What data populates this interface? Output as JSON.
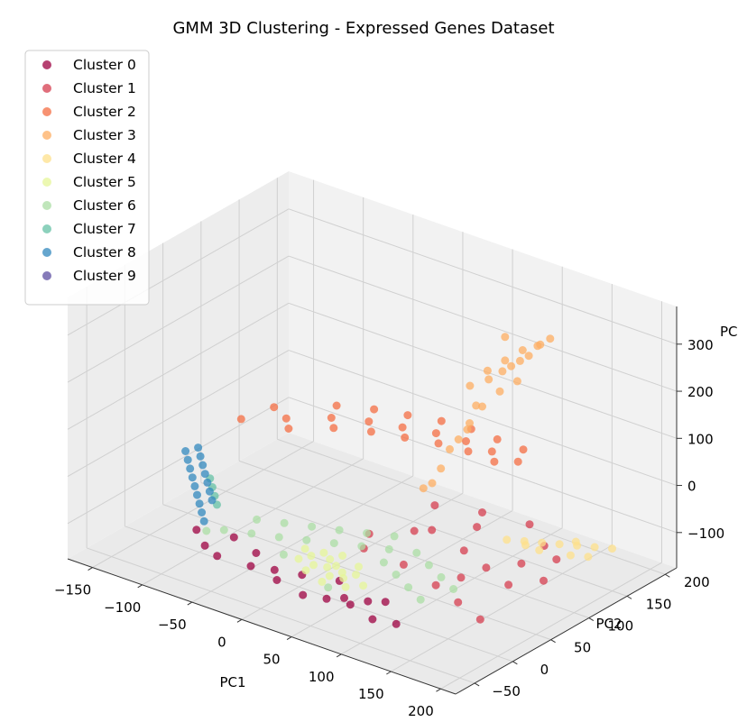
{
  "chart_data": {
    "type": "scatter",
    "projection": "3d",
    "title": "GMM 3D Clustering - Expressed Genes Dataset",
    "xlabel": "PC1",
    "ylabel": "PC2",
    "zlabel": "PC",
    "x_ticks": [
      "−150",
      "−100",
      "−50",
      "0",
      "50",
      "100",
      "150",
      "200"
    ],
    "y_ticks": [
      "−50",
      "0",
      "50",
      "100",
      "150",
      "200"
    ],
    "z_ticks": [
      "−100",
      "0",
      "100",
      "200",
      "300"
    ],
    "x_range": [
      -175,
      215
    ],
    "y_range": [
      -75,
      215
    ],
    "z_range": [
      -175,
      380
    ],
    "grid": true,
    "legend_position": "upper-left",
    "series": [
      {
        "name": "Cluster 0",
        "color": "#9e0142",
        "points": [
          [
            -60,
            -45,
            -90
          ],
          [
            -40,
            -55,
            -88
          ],
          [
            -10,
            -50,
            -92
          ],
          [
            20,
            -55,
            -95
          ],
          [
            50,
            -60,
            -100
          ],
          [
            80,
            -45,
            -98
          ],
          [
            100,
            -40,
            -95
          ],
          [
            120,
            -60,
            -100
          ],
          [
            140,
            -55,
            -100
          ],
          [
            -80,
            -30,
            -85
          ],
          [
            -20,
            -30,
            -90
          ],
          [
            30,
            -35,
            -95
          ],
          [
            60,
            -25,
            -95
          ],
          [
            90,
            -50,
            -100
          ],
          [
            10,
            -45,
            -90
          ],
          [
            -50,
            -20,
            -88
          ],
          [
            110,
            -30,
            -98
          ],
          [
            70,
            -55,
            -98
          ]
        ]
      },
      {
        "name": "Cluster 1",
        "color": "#d53e4f",
        "points": [
          [
            60,
            100,
            -50
          ],
          [
            100,
            110,
            -45
          ],
          [
            140,
            120,
            -50
          ],
          [
            170,
            100,
            -55
          ],
          [
            190,
            90,
            -60
          ],
          [
            80,
            70,
            -60
          ],
          [
            120,
            60,
            -65
          ],
          [
            150,
            50,
            -70
          ],
          [
            180,
            40,
            -75
          ],
          [
            200,
            60,
            -70
          ],
          [
            40,
            40,
            -70
          ],
          [
            90,
            20,
            -80
          ],
          [
            130,
            10,
            -85
          ],
          [
            160,
            0,
            -90
          ],
          [
            190,
            -10,
            -95
          ],
          [
            110,
            90,
            -50
          ],
          [
            70,
            60,
            -60
          ],
          [
            170,
            70,
            -65
          ],
          [
            50,
            20,
            -75
          ],
          [
            140,
            30,
            -80
          ]
        ]
      },
      {
        "name": "Cluster 2",
        "color": "#f46d43",
        "points": [
          [
            -150,
            120,
            -40
          ],
          [
            -120,
            140,
            -35
          ],
          [
            -90,
            160,
            -30
          ],
          [
            -60,
            170,
            -25
          ],
          [
            -30,
            175,
            -20
          ],
          [
            0,
            180,
            -15
          ],
          [
            30,
            180,
            -10
          ],
          [
            60,
            175,
            -5
          ],
          [
            90,
            170,
            0
          ],
          [
            -140,
            150,
            -35
          ],
          [
            -100,
            180,
            -30
          ],
          [
            -70,
            190,
            -25
          ],
          [
            -40,
            195,
            -20
          ],
          [
            -10,
            200,
            -15
          ],
          [
            20,
            200,
            -10
          ],
          [
            50,
            195,
            -5
          ],
          [
            80,
            190,
            0
          ],
          [
            -110,
            130,
            -40
          ],
          [
            -80,
            150,
            -35
          ],
          [
            -50,
            160,
            -30
          ],
          [
            -20,
            165,
            -25
          ],
          [
            10,
            170,
            -20
          ],
          [
            40,
            170,
            -15
          ],
          [
            70,
            165,
            -10
          ]
        ]
      },
      {
        "name": "Cluster 3",
        "color": "#fdae61",
        "points": [
          [
            80,
            120,
            200
          ],
          [
            90,
            130,
            230
          ],
          [
            100,
            140,
            250
          ],
          [
            110,
            150,
            270
          ],
          [
            120,
            160,
            280
          ],
          [
            100,
            110,
            180
          ],
          [
            110,
            120,
            210
          ],
          [
            95,
            100,
            150
          ],
          [
            85,
            110,
            120
          ],
          [
            75,
            100,
            80
          ],
          [
            70,
            95,
            40
          ],
          [
            65,
            90,
            10
          ],
          [
            105,
            130,
            240
          ],
          [
            115,
            140,
            260
          ],
          [
            125,
            150,
            290
          ],
          [
            130,
            160,
            300
          ],
          [
            90,
            115,
            170
          ],
          [
            80,
            105,
            100
          ],
          [
            95,
            125,
            220
          ],
          [
            110,
            135,
            250
          ],
          [
            120,
            145,
            270
          ],
          [
            60,
            85,
            0
          ],
          [
            100,
            140,
            300
          ],
          [
            120,
            130,
            230
          ]
        ]
      },
      {
        "name": "Cluster 4",
        "color": "#fee08b",
        "points": [
          [
            150,
            100,
            -60
          ],
          [
            160,
            110,
            -65
          ],
          [
            170,
            120,
            -70
          ],
          [
            180,
            130,
            -75
          ],
          [
            190,
            140,
            -80
          ],
          [
            200,
            150,
            -85
          ],
          [
            140,
            90,
            -55
          ],
          [
            165,
            100,
            -68
          ],
          [
            185,
            115,
            -78
          ],
          [
            195,
            125,
            -83
          ],
          [
            175,
            135,
            -75
          ],
          [
            155,
            95,
            -60
          ]
        ]
      },
      {
        "name": "Cluster 5",
        "color": "#e6f598",
        "points": [
          [
            20,
            -10,
            -85
          ],
          [
            30,
            -20,
            -88
          ],
          [
            40,
            -15,
            -90
          ],
          [
            50,
            -25,
            -92
          ],
          [
            60,
            -20,
            -94
          ],
          [
            10,
            -5,
            -82
          ],
          [
            25,
            0,
            -84
          ],
          [
            35,
            -5,
            -86
          ],
          [
            45,
            -10,
            -88
          ],
          [
            55,
            -15,
            -90
          ],
          [
            65,
            -10,
            -92
          ],
          [
            30,
            -30,
            -90
          ],
          [
            50,
            -35,
            -95
          ],
          [
            70,
            -30,
            -96
          ],
          [
            15,
            -20,
            -86
          ],
          [
            40,
            5,
            -84
          ],
          [
            60,
            0,
            -88
          ],
          [
            80,
            -20,
            -95
          ]
        ]
      },
      {
        "name": "Cluster 6",
        "color": "#abdda4",
        "points": [
          [
            -60,
            -20,
            -80
          ],
          [
            -40,
            -10,
            -82
          ],
          [
            -20,
            0,
            -84
          ],
          [
            0,
            10,
            -85
          ],
          [
            20,
            20,
            -86
          ],
          [
            40,
            30,
            -87
          ],
          [
            60,
            40,
            -88
          ],
          [
            80,
            50,
            -90
          ],
          [
            100,
            40,
            -92
          ],
          [
            120,
            30,
            -94
          ],
          [
            -50,
            10,
            -78
          ],
          [
            -30,
            20,
            -80
          ],
          [
            -10,
            30,
            -82
          ],
          [
            10,
            40,
            -84
          ],
          [
            30,
            50,
            -85
          ],
          [
            50,
            60,
            -86
          ],
          [
            70,
            20,
            -90
          ],
          [
            90,
            10,
            -92
          ],
          [
            110,
            0,
            -95
          ],
          [
            130,
            -10,
            -97
          ],
          [
            -70,
            -30,
            -80
          ],
          [
            0,
            -20,
            -88
          ],
          [
            60,
            -40,
            -95
          ],
          [
            140,
            20,
            -95
          ]
        ]
      },
      {
        "name": "Cluster 7",
        "color": "#66c2a5",
        "points": [
          [
            -120,
            40,
            -70
          ],
          [
            -110,
            30,
            -72
          ],
          [
            -100,
            20,
            -74
          ],
          [
            -90,
            10,
            -76
          ]
        ]
      },
      {
        "name": "Cluster 8",
        "color": "#3288bd",
        "points": [
          [
            -160,
            60,
            -60
          ],
          [
            -150,
            50,
            -62
          ],
          [
            -140,
            40,
            -64
          ],
          [
            -130,
            30,
            -66
          ],
          [
            -120,
            20,
            -68
          ],
          [
            -110,
            10,
            -70
          ],
          [
            -100,
            0,
            -72
          ],
          [
            -90,
            -10,
            -74
          ],
          [
            -80,
            -20,
            -76
          ],
          [
            -155,
            70,
            -58
          ],
          [
            -145,
            60,
            -60
          ],
          [
            -135,
            50,
            -62
          ],
          [
            -125,
            40,
            -64
          ],
          [
            -115,
            30,
            -66
          ],
          [
            -105,
            20,
            -68
          ],
          [
            -95,
            10,
            -70
          ]
        ]
      },
      {
        "name": "Cluster 9",
        "color": "#5e4fa2",
        "points": []
      }
    ]
  }
}
